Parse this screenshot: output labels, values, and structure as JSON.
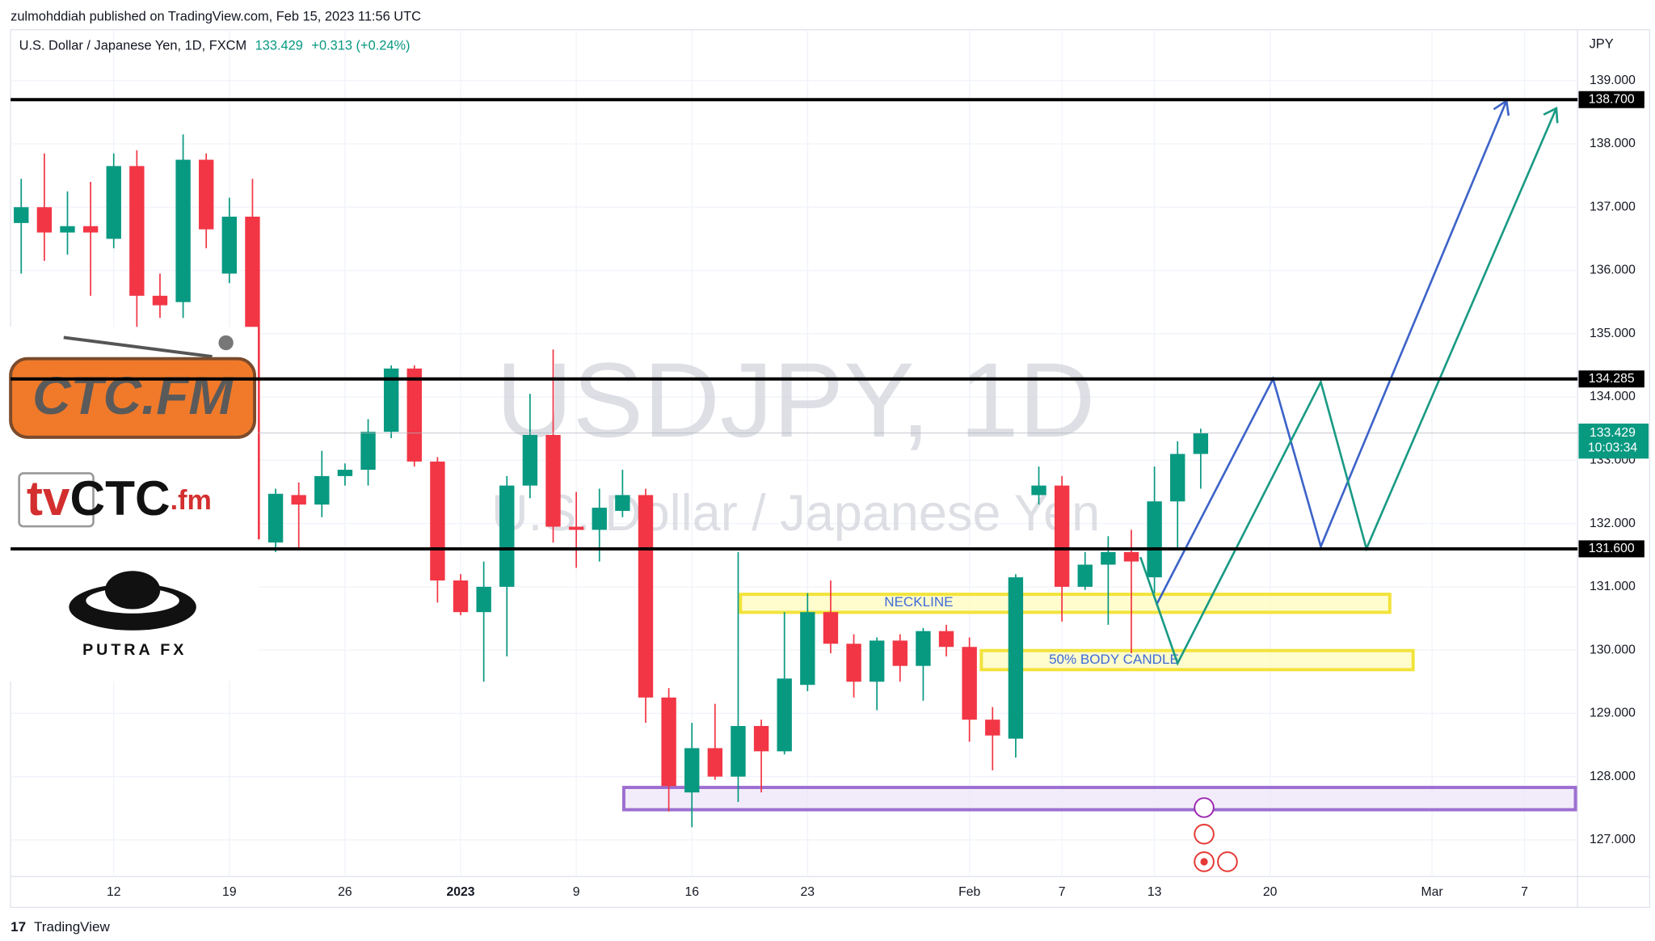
{
  "header": {
    "published": "zulmohddiah published on TradingView.com, Feb 15, 2023 11:56 UTC"
  },
  "footer": {
    "brand": "TradingView"
  },
  "logos": {
    "ctc_fm": "CTC.FM",
    "tvctc": [
      "tv",
      "CTC",
      ".fm"
    ],
    "putra": "PUTRA FX"
  },
  "chart_data": {
    "type": "candlestick",
    "title": "U.S. Dollar / Japanese Yen, 1D, FXCM",
    "last": 133.429,
    "change": "+0.313 (+0.24%)",
    "countdown": "10:03:34",
    "currency": "JPY",
    "watermark": "USDJPY, 1D",
    "watermark_subtitle": "U.S. Dollar / Japanese Yen",
    "up_color": "#089981",
    "down_color": "#f23645",
    "grid": true,
    "categories": [
      null,
      null,
      null,
      null,
      "12",
      null,
      null,
      null,
      null,
      "19",
      null,
      null,
      null,
      null,
      "26",
      null,
      null,
      null,
      null,
      "2023",
      null,
      null,
      null,
      null,
      "9",
      null,
      null,
      null,
      null,
      "16",
      null,
      null,
      null,
      null,
      "23",
      null,
      null,
      null,
      null,
      null,
      null,
      "Feb",
      null,
      null,
      null,
      "7",
      null,
      null,
      null,
      "13",
      null,
      null,
      null,
      null,
      "20",
      null,
      null,
      null,
      null,
      null,
      null,
      "Mar",
      null,
      null,
      null,
      "7",
      null,
      null
    ],
    "open": [
      136.75,
      137.0,
      136.6,
      136.7,
      136.5,
      137.65,
      135.6,
      135.5,
      137.75,
      135.95,
      136.85,
      131.7,
      132.45,
      132.3,
      132.75,
      132.85,
      133.45,
      134.45,
      132.98,
      131.1,
      130.6,
      131.0,
      132.6,
      133.4,
      131.95,
      131.9,
      132.2,
      132.45,
      129.25,
      127.75,
      128.45,
      128.0,
      128.8,
      128.4,
      129.45,
      130.6,
      130.1,
      129.5,
      130.15,
      129.75,
      130.3,
      130.05,
      128.9,
      128.6,
      132.45,
      132.6,
      131.0,
      131.35,
      131.55,
      131.15,
      132.35,
      133.1,
      null,
      null,
      null,
      null,
      null,
      null,
      null,
      null,
      null,
      null,
      null,
      null,
      null,
      null,
      null,
      null
    ],
    "high": [
      137.45,
      137.85,
      137.25,
      137.4,
      137.85,
      137.9,
      135.95,
      138.15,
      137.85,
      137.15,
      137.45,
      132.55,
      132.65,
      133.15,
      132.95,
      133.65,
      134.5,
      134.5,
      133.05,
      131.2,
      131.4,
      132.75,
      134.05,
      134.75,
      132.5,
      132.55,
      132.85,
      132.55,
      129.4,
      128.85,
      129.15,
      131.55,
      128.9,
      130.6,
      130.9,
      131.1,
      130.25,
      130.2,
      130.25,
      130.35,
      130.4,
      130.2,
      129.1,
      131.2,
      132.9,
      132.75,
      131.55,
      131.8,
      131.9,
      132.9,
      133.3,
      133.5,
      null,
      null,
      null,
      null,
      null,
      null,
      null,
      null,
      null,
      null,
      null,
      null,
      null,
      null,
      null,
      null
    ],
    "low": [
      135.95,
      136.15,
      136.25,
      135.6,
      136.35,
      135.05,
      135.25,
      135.25,
      136.35,
      135.8,
      130.6,
      131.55,
      131.6,
      132.1,
      132.6,
      132.6,
      133.35,
      132.9,
      130.75,
      130.55,
      129.5,
      129.9,
      132.4,
      131.7,
      131.3,
      131.4,
      132.1,
      128.85,
      127.45,
      127.2,
      127.95,
      127.6,
      127.75,
      128.35,
      129.35,
      129.95,
      129.25,
      129.05,
      129.5,
      129.2,
      129.9,
      128.55,
      128.1,
      128.3,
      132.3,
      130.45,
      130.95,
      130.4,
      129.95,
      130.9,
      131.6,
      132.55,
      null,
      null,
      null,
      null,
      null,
      null,
      null,
      null,
      null,
      null,
      null,
      null,
      null,
      null,
      null,
      null
    ],
    "close": [
      137.0,
      136.6,
      136.7,
      136.6,
      137.65,
      135.6,
      135.45,
      137.75,
      136.65,
      136.85,
      131.75,
      132.47,
      132.3,
      132.75,
      132.85,
      133.45,
      134.45,
      132.98,
      131.1,
      130.6,
      131.0,
      132.6,
      133.4,
      131.95,
      131.9,
      132.25,
      132.45,
      129.25,
      127.85,
      128.45,
      128.0,
      128.8,
      128.4,
      129.55,
      130.6,
      130.1,
      129.5,
      130.15,
      129.75,
      130.3,
      130.05,
      128.9,
      128.65,
      131.15,
      132.6,
      131.0,
      131.35,
      131.55,
      131.4,
      132.35,
      133.1,
      133.429,
      null,
      null,
      null,
      null,
      null,
      null,
      null,
      null,
      null,
      null,
      null,
      null,
      null,
      null,
      null,
      null
    ],
    "ylim": [
      126.42,
      139.805
    ],
    "yticks": [
      {
        "value": 127,
        "label": "127.000"
      },
      {
        "value": 128,
        "label": "128.000"
      },
      {
        "value": 129,
        "label": "129.000"
      },
      {
        "value": 130,
        "label": "130.000"
      },
      {
        "value": 131,
        "label": "131.000"
      },
      {
        "value": 132,
        "label": "132.000"
      },
      {
        "value": 133,
        "label": "133.000"
      },
      {
        "value": 134,
        "label": "134.000"
      },
      {
        "value": 135,
        "label": "135.000"
      },
      {
        "value": 136,
        "label": "136.000"
      },
      {
        "value": 137,
        "label": "137.000"
      },
      {
        "value": 138,
        "label": "138.000"
      },
      {
        "value": 139,
        "label": "139.000"
      }
    ],
    "levels": [
      {
        "value": 138.7,
        "label": "138.700"
      },
      {
        "value": 134.285,
        "label": "134.285"
      },
      {
        "value": 131.6,
        "label": "131.600"
      }
    ],
    "level_color": "#000000",
    "annotations": {
      "neckline": "NECKLINE",
      "body": "50% BODY CANDLE"
    }
  }
}
